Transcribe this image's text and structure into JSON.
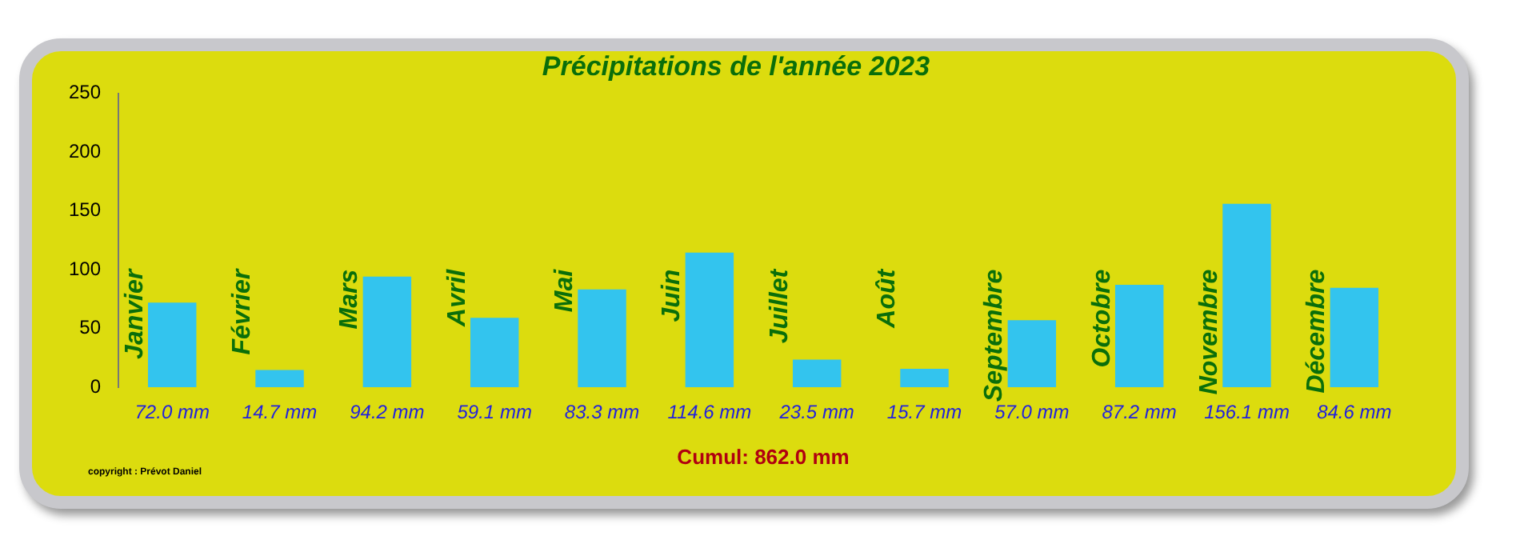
{
  "chart_data": {
    "type": "bar",
    "title": "Précipitations de l'année 2023",
    "categories": [
      "Janvier",
      "Février",
      "Mars",
      "Avril",
      "Mai",
      "Juin",
      "Juillet",
      "Août",
      "Septembre",
      "Octobre",
      "Novembre",
      "Décembre"
    ],
    "values": [
      72.0,
      14.7,
      94.2,
      59.1,
      83.3,
      114.6,
      23.5,
      15.7,
      57.0,
      87.2,
      156.1,
      84.6
    ],
    "value_labels": [
      "72.0 mm",
      "14.7 mm",
      "94.2 mm",
      "59.1 mm",
      "83.3 mm",
      "114.6 mm",
      "23.5 mm",
      "15.7 mm",
      "57.0 mm",
      "87.2 mm",
      "156.1 mm",
      "84.6 mm"
    ],
    "color": "#33c4ee",
    "ylim": [
      0,
      250
    ],
    "yticks": [
      0,
      50,
      100,
      150,
      200,
      250
    ],
    "grid": false,
    "legend": false,
    "annotations": [
      "Cumul: 862.0 mm",
      "copyright : Prévot Daniel"
    ]
  }
}
